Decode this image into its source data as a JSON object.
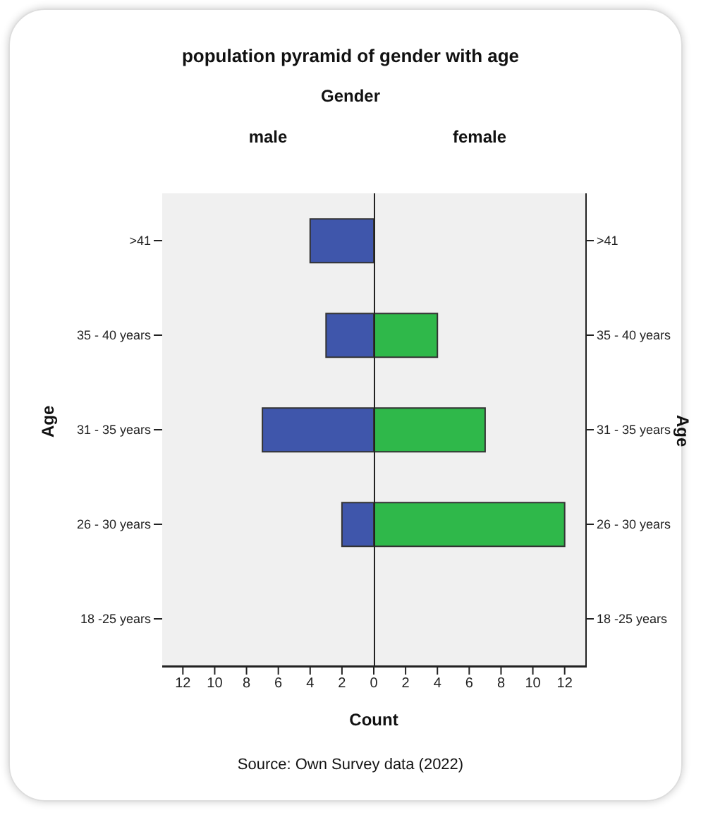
{
  "chart_data": [
    {
      "type": "bar",
      "orientation": "horizontal",
      "title": "population pyramid of gender with age",
      "subtitle": "Gender",
      "ylabel": "Age",
      "xlabel": "Count",
      "annotations": [
        "Source: Own Survey data (2022)"
      ],
      "categories": [
        ">41",
        "35 - 40 years",
        "31 - 35 years",
        "26 - 30 years",
        "18 -25 years"
      ],
      "series": [
        {
          "name": "male",
          "color": "#3f56ab",
          "values": [
            4,
            3,
            7,
            2,
            0
          ]
        }
      ],
      "xlim": [
        13.3,
        0
      ],
      "xticks": [
        12,
        10,
        8,
        6,
        4,
        2,
        {
          "value": 0,
          "label": null
        }
      ]
    },
    {
      "type": "bar",
      "orientation": "horizontal",
      "ylabel": "Age",
      "categories": [
        ">41",
        "35 - 40 years",
        "31 - 35 years",
        "26 - 30 years",
        "18 -25 years"
      ],
      "series": [
        {
          "name": "female",
          "color": "#2fb84a",
          "values": [
            0,
            4,
            7,
            12,
            0
          ]
        }
      ],
      "xlim": [
        0,
        13.3
      ],
      "xticks": [
        0,
        2,
        4,
        6,
        8,
        10,
        12
      ]
    }
  ]
}
